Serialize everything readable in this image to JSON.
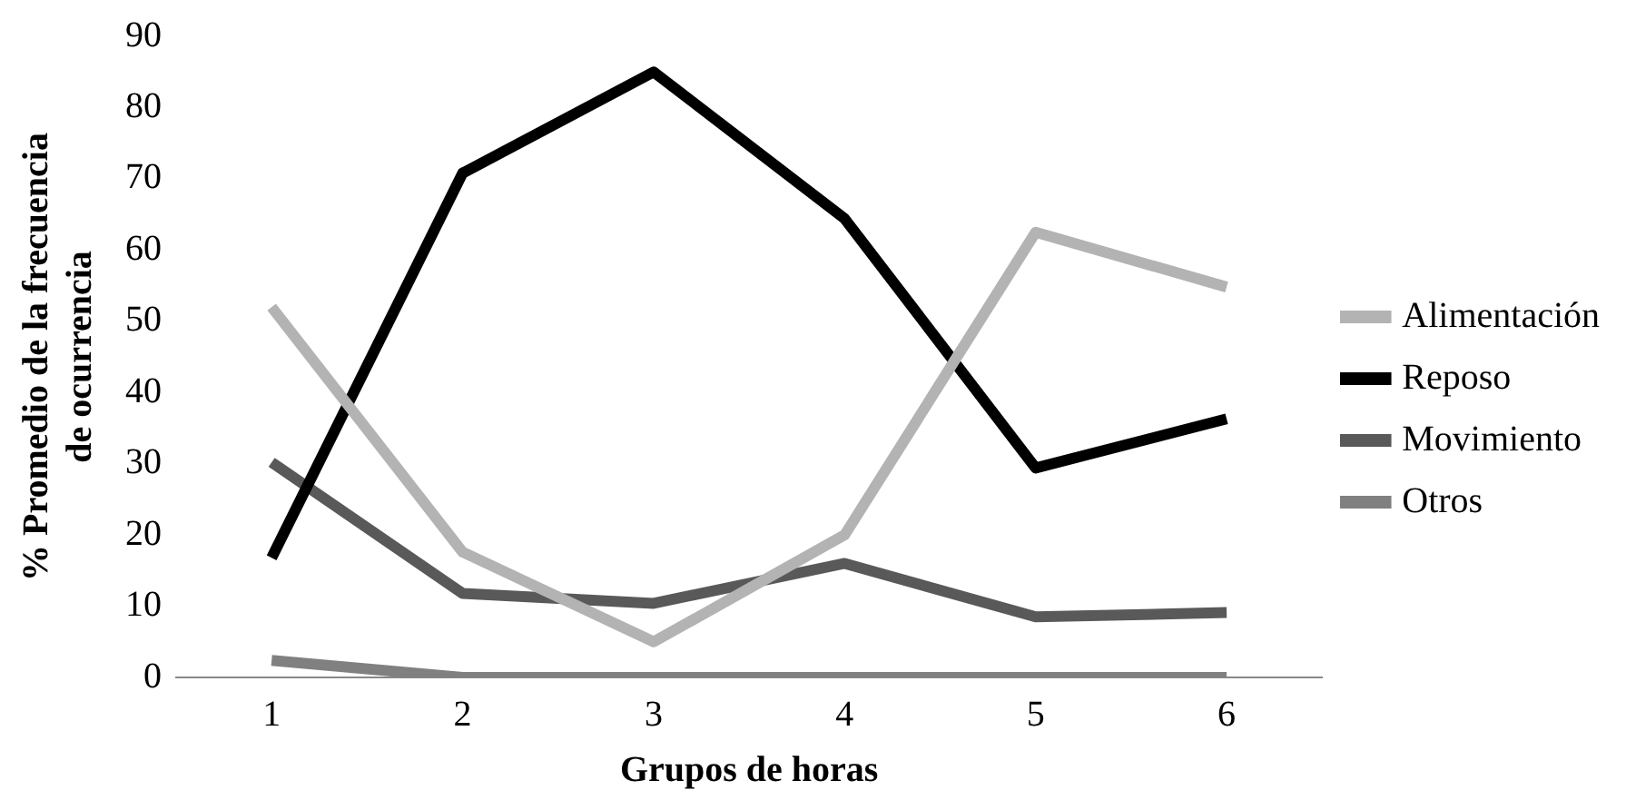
{
  "chart_data": {
    "type": "line",
    "xlabel": "Grupos de horas",
    "ylabel": "% Promedio de la frecuencia de ocurrencia",
    "categories": [
      "1",
      "2",
      "3",
      "4",
      "5",
      "6"
    ],
    "series": [
      {
        "name": "Alimentación",
        "color": "#b3b3b3",
        "values": [
          52,
          17.6,
          5,
          20,
          62.5,
          54.8
        ]
      },
      {
        "name": "Reposo",
        "color": "#000000",
        "values": [
          16.8,
          70.8,
          85,
          64.4,
          29.4,
          36.3
        ]
      },
      {
        "name": "Movimiento",
        "color": "#595959",
        "values": [
          30.2,
          11.8,
          10.4,
          16,
          8.5,
          9.1
        ]
      },
      {
        "name": "Otros",
        "color": "#808080",
        "values": [
          2.4,
          0,
          0,
          0,
          0,
          0
        ]
      }
    ],
    "ylim": [
      0,
      90
    ],
    "yticks": [
      0,
      10,
      20,
      30,
      40,
      50,
      60,
      70,
      80,
      90
    ],
    "grid": false,
    "legend": "right",
    "marker": "none",
    "line_style": "solid"
  }
}
